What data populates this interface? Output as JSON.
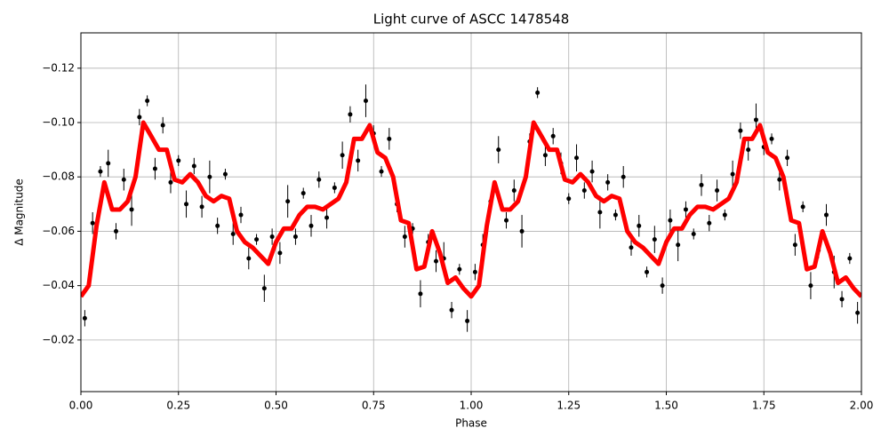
{
  "chart_data": {
    "type": "scatter",
    "title": "Light curve of ASCC 1478548",
    "x_label": "Phase",
    "y_label": "Δ Magnitude",
    "xlim": [
      0,
      2
    ],
    "ylim": [
      -0.001,
      -0.133
    ],
    "xticks": [
      {
        "value": 0,
        "label": "0.00"
      },
      {
        "value": 0.25,
        "label": "0.25"
      },
      {
        "value": 0.5,
        "label": "0.50"
      },
      {
        "value": 0.75,
        "label": "0.75"
      },
      {
        "value": 1,
        "label": "1.00"
      },
      {
        "value": 1.25,
        "label": "1.25"
      },
      {
        "value": 1.5,
        "label": "1.50"
      },
      {
        "value": 1.75,
        "label": "1.75"
      },
      {
        "value": 2,
        "label": "2.00"
      }
    ],
    "yticks": [
      {
        "value": -0.02,
        "label": "−0.02"
      },
      {
        "value": -0.04,
        "label": "−0.04"
      },
      {
        "value": -0.06,
        "label": "−0.06"
      },
      {
        "value": -0.08,
        "label": "−0.08"
      },
      {
        "value": -0.1,
        "label": "−0.10"
      },
      {
        "value": -0.12,
        "label": "−0.12"
      }
    ],
    "grid": true,
    "series": [
      {
        "type": "scatter",
        "color": "#000000",
        "x": [
          0.01,
          0.03,
          0.05,
          0.07,
          0.09,
          0.11,
          0.13,
          0.15,
          0.17,
          0.19,
          0.21,
          0.23,
          0.25,
          0.27,
          0.29,
          0.31,
          0.33,
          0.35,
          0.37,
          0.39,
          0.41,
          0.43,
          0.45,
          0.47,
          0.49,
          0.51,
          0.53,
          0.55,
          0.57,
          0.59,
          0.61,
          0.63,
          0.65,
          0.67,
          0.69,
          0.71,
          0.73,
          0.75,
          0.77,
          0.79,
          0.81,
          0.83,
          0.85,
          0.87,
          0.89,
          0.91,
          0.93,
          0.95,
          0.97,
          0.99,
          1.01,
          1.03,
          1.05,
          1.07,
          1.09,
          1.11,
          1.13,
          1.15,
          1.17,
          1.19,
          1.21,
          1.23,
          1.25,
          1.27,
          1.29,
          1.31,
          1.33,
          1.35,
          1.37,
          1.39,
          1.41,
          1.43,
          1.45,
          1.47,
          1.49,
          1.51,
          1.53,
          1.55,
          1.57,
          1.59,
          1.61,
          1.63,
          1.65,
          1.67,
          1.69,
          1.71,
          1.73,
          1.75,
          1.77,
          1.79,
          1.81,
          1.83,
          1.85,
          1.87,
          1.89,
          1.91,
          1.93,
          1.95,
          1.97,
          1.99
        ],
        "values": [
          -0.028,
          -0.063,
          -0.082,
          -0.085,
          -0.06,
          -0.079,
          -0.068,
          -0.102,
          -0.108,
          -0.083,
          -0.099,
          -0.078,
          -0.086,
          -0.07,
          -0.084,
          -0.069,
          -0.08,
          -0.062,
          -0.081,
          -0.059,
          -0.066,
          -0.05,
          -0.057,
          -0.039,
          -0.058,
          -0.052,
          -0.071,
          -0.058,
          -0.074,
          -0.062,
          -0.079,
          -0.065,
          -0.076,
          -0.088,
          -0.103,
          -0.086,
          -0.108,
          -0.096,
          -0.082,
          -0.094,
          -0.07,
          -0.058,
          -0.061,
          -0.037,
          -0.056,
          -0.049,
          -0.05,
          -0.031,
          -0.046,
          -0.027,
          -0.045,
          -0.055,
          -0.071,
          -0.09,
          -0.064,
          -0.075,
          -0.06,
          -0.093,
          -0.111,
          -0.088,
          -0.095,
          -0.085,
          -0.072,
          -0.087,
          -0.075,
          -0.082,
          -0.067,
          -0.078,
          -0.066,
          -0.08,
          -0.054,
          -0.062,
          -0.045,
          -0.057,
          -0.04,
          -0.064,
          -0.055,
          -0.068,
          -0.059,
          -0.077,
          -0.063,
          -0.075,
          -0.066,
          -0.081,
          -0.097,
          -0.09,
          -0.101,
          -0.091,
          -0.094,
          -0.079,
          -0.087,
          -0.055,
          -0.069,
          -0.04,
          -0.053,
          -0.066,
          -0.045,
          -0.035,
          -0.05,
          -0.03
        ],
        "errors": [
          0.003,
          0.004,
          0.002,
          0.005,
          0.003,
          0.004,
          0.006,
          0.003,
          0.002,
          0.004,
          0.003,
          0.004,
          0.002,
          0.005,
          0.003,
          0.004,
          0.006,
          0.003,
          0.002,
          0.004,
          0.003,
          0.004,
          0.002,
          0.005,
          0.003,
          0.004,
          0.006,
          0.003,
          0.002,
          0.004,
          0.003,
          0.004,
          0.002,
          0.005,
          0.003,
          0.004,
          0.006,
          0.003,
          0.002,
          0.004,
          0.003,
          0.004,
          0.002,
          0.005,
          0.003,
          0.004,
          0.006,
          0.003,
          0.002,
          0.004,
          0.003,
          0.004,
          0.002,
          0.005,
          0.003,
          0.004,
          0.006,
          0.003,
          0.002,
          0.004,
          0.003,
          0.004,
          0.002,
          0.005,
          0.003,
          0.004,
          0.006,
          0.003,
          0.002,
          0.004,
          0.003,
          0.004,
          0.002,
          0.005,
          0.003,
          0.004,
          0.006,
          0.003,
          0.002,
          0.004,
          0.003,
          0.004,
          0.002,
          0.005,
          0.003,
          0.004,
          0.006,
          0.003,
          0.002,
          0.004,
          0.003,
          0.004,
          0.002,
          0.005,
          0.003,
          0.004,
          0.006,
          0.003,
          0.002,
          0.004
        ]
      },
      {
        "type": "line",
        "color": "#ff0000",
        "x": [
          0,
          0.02,
          0.04,
          0.06,
          0.08,
          0.1,
          0.12,
          0.14,
          0.16,
          0.18,
          0.2,
          0.22,
          0.24,
          0.26,
          0.28,
          0.3,
          0.32,
          0.34,
          0.36,
          0.38,
          0.4,
          0.42,
          0.44,
          0.46,
          0.48,
          0.5,
          0.52,
          0.54,
          0.56,
          0.58,
          0.6,
          0.62,
          0.64,
          0.66,
          0.68,
          0.7,
          0.72,
          0.74,
          0.76,
          0.78,
          0.8,
          0.82,
          0.84,
          0.86,
          0.88,
          0.9,
          0.92,
          0.94,
          0.96,
          0.98,
          1,
          1.02,
          1.04,
          1.06,
          1.08,
          1.1,
          1.12,
          1.14,
          1.16,
          1.18,
          1.2,
          1.22,
          1.24,
          1.26,
          1.28,
          1.3,
          1.32,
          1.34,
          1.36,
          1.38,
          1.4,
          1.42,
          1.44,
          1.46,
          1.48,
          1.5,
          1.52,
          1.54,
          1.56,
          1.58,
          1.6,
          1.62,
          1.64,
          1.66,
          1.68,
          1.7,
          1.72,
          1.74,
          1.76,
          1.78,
          1.8,
          1.82,
          1.84,
          1.86,
          1.88,
          1.9,
          1.92,
          1.94,
          1.96,
          1.98,
          2
        ],
        "values": [
          -0.036,
          -0.04,
          -0.062,
          -0.078,
          -0.068,
          -0.068,
          -0.071,
          -0.08,
          -0.1,
          -0.095,
          -0.09,
          -0.09,
          -0.079,
          -0.078,
          -0.081,
          -0.078,
          -0.073,
          -0.071,
          -0.073,
          -0.072,
          -0.06,
          -0.056,
          -0.054,
          -0.051,
          -0.048,
          -0.056,
          -0.061,
          -0.061,
          -0.066,
          -0.069,
          -0.069,
          -0.068,
          -0.07,
          -0.072,
          -0.078,
          -0.094,
          -0.094,
          -0.099,
          -0.089,
          -0.087,
          -0.08,
          -0.064,
          -0.063,
          -0.046,
          -0.047,
          -0.06,
          -0.052,
          -0.041,
          -0.043,
          -0.039,
          -0.036,
          -0.04,
          -0.062,
          -0.078,
          -0.068,
          -0.068,
          -0.071,
          -0.08,
          -0.1,
          -0.095,
          -0.09,
          -0.09,
          -0.079,
          -0.078,
          -0.081,
          -0.078,
          -0.073,
          -0.071,
          -0.073,
          -0.072,
          -0.06,
          -0.056,
          -0.054,
          -0.051,
          -0.048,
          -0.056,
          -0.061,
          -0.061,
          -0.066,
          -0.069,
          -0.069,
          -0.068,
          -0.07,
          -0.072,
          -0.078,
          -0.094,
          -0.094,
          -0.099,
          -0.089,
          -0.087,
          -0.08,
          -0.064,
          -0.063,
          -0.046,
          -0.047,
          -0.06,
          -0.052,
          -0.041,
          -0.043,
          -0.039,
          -0.036
        ]
      }
    ]
  }
}
